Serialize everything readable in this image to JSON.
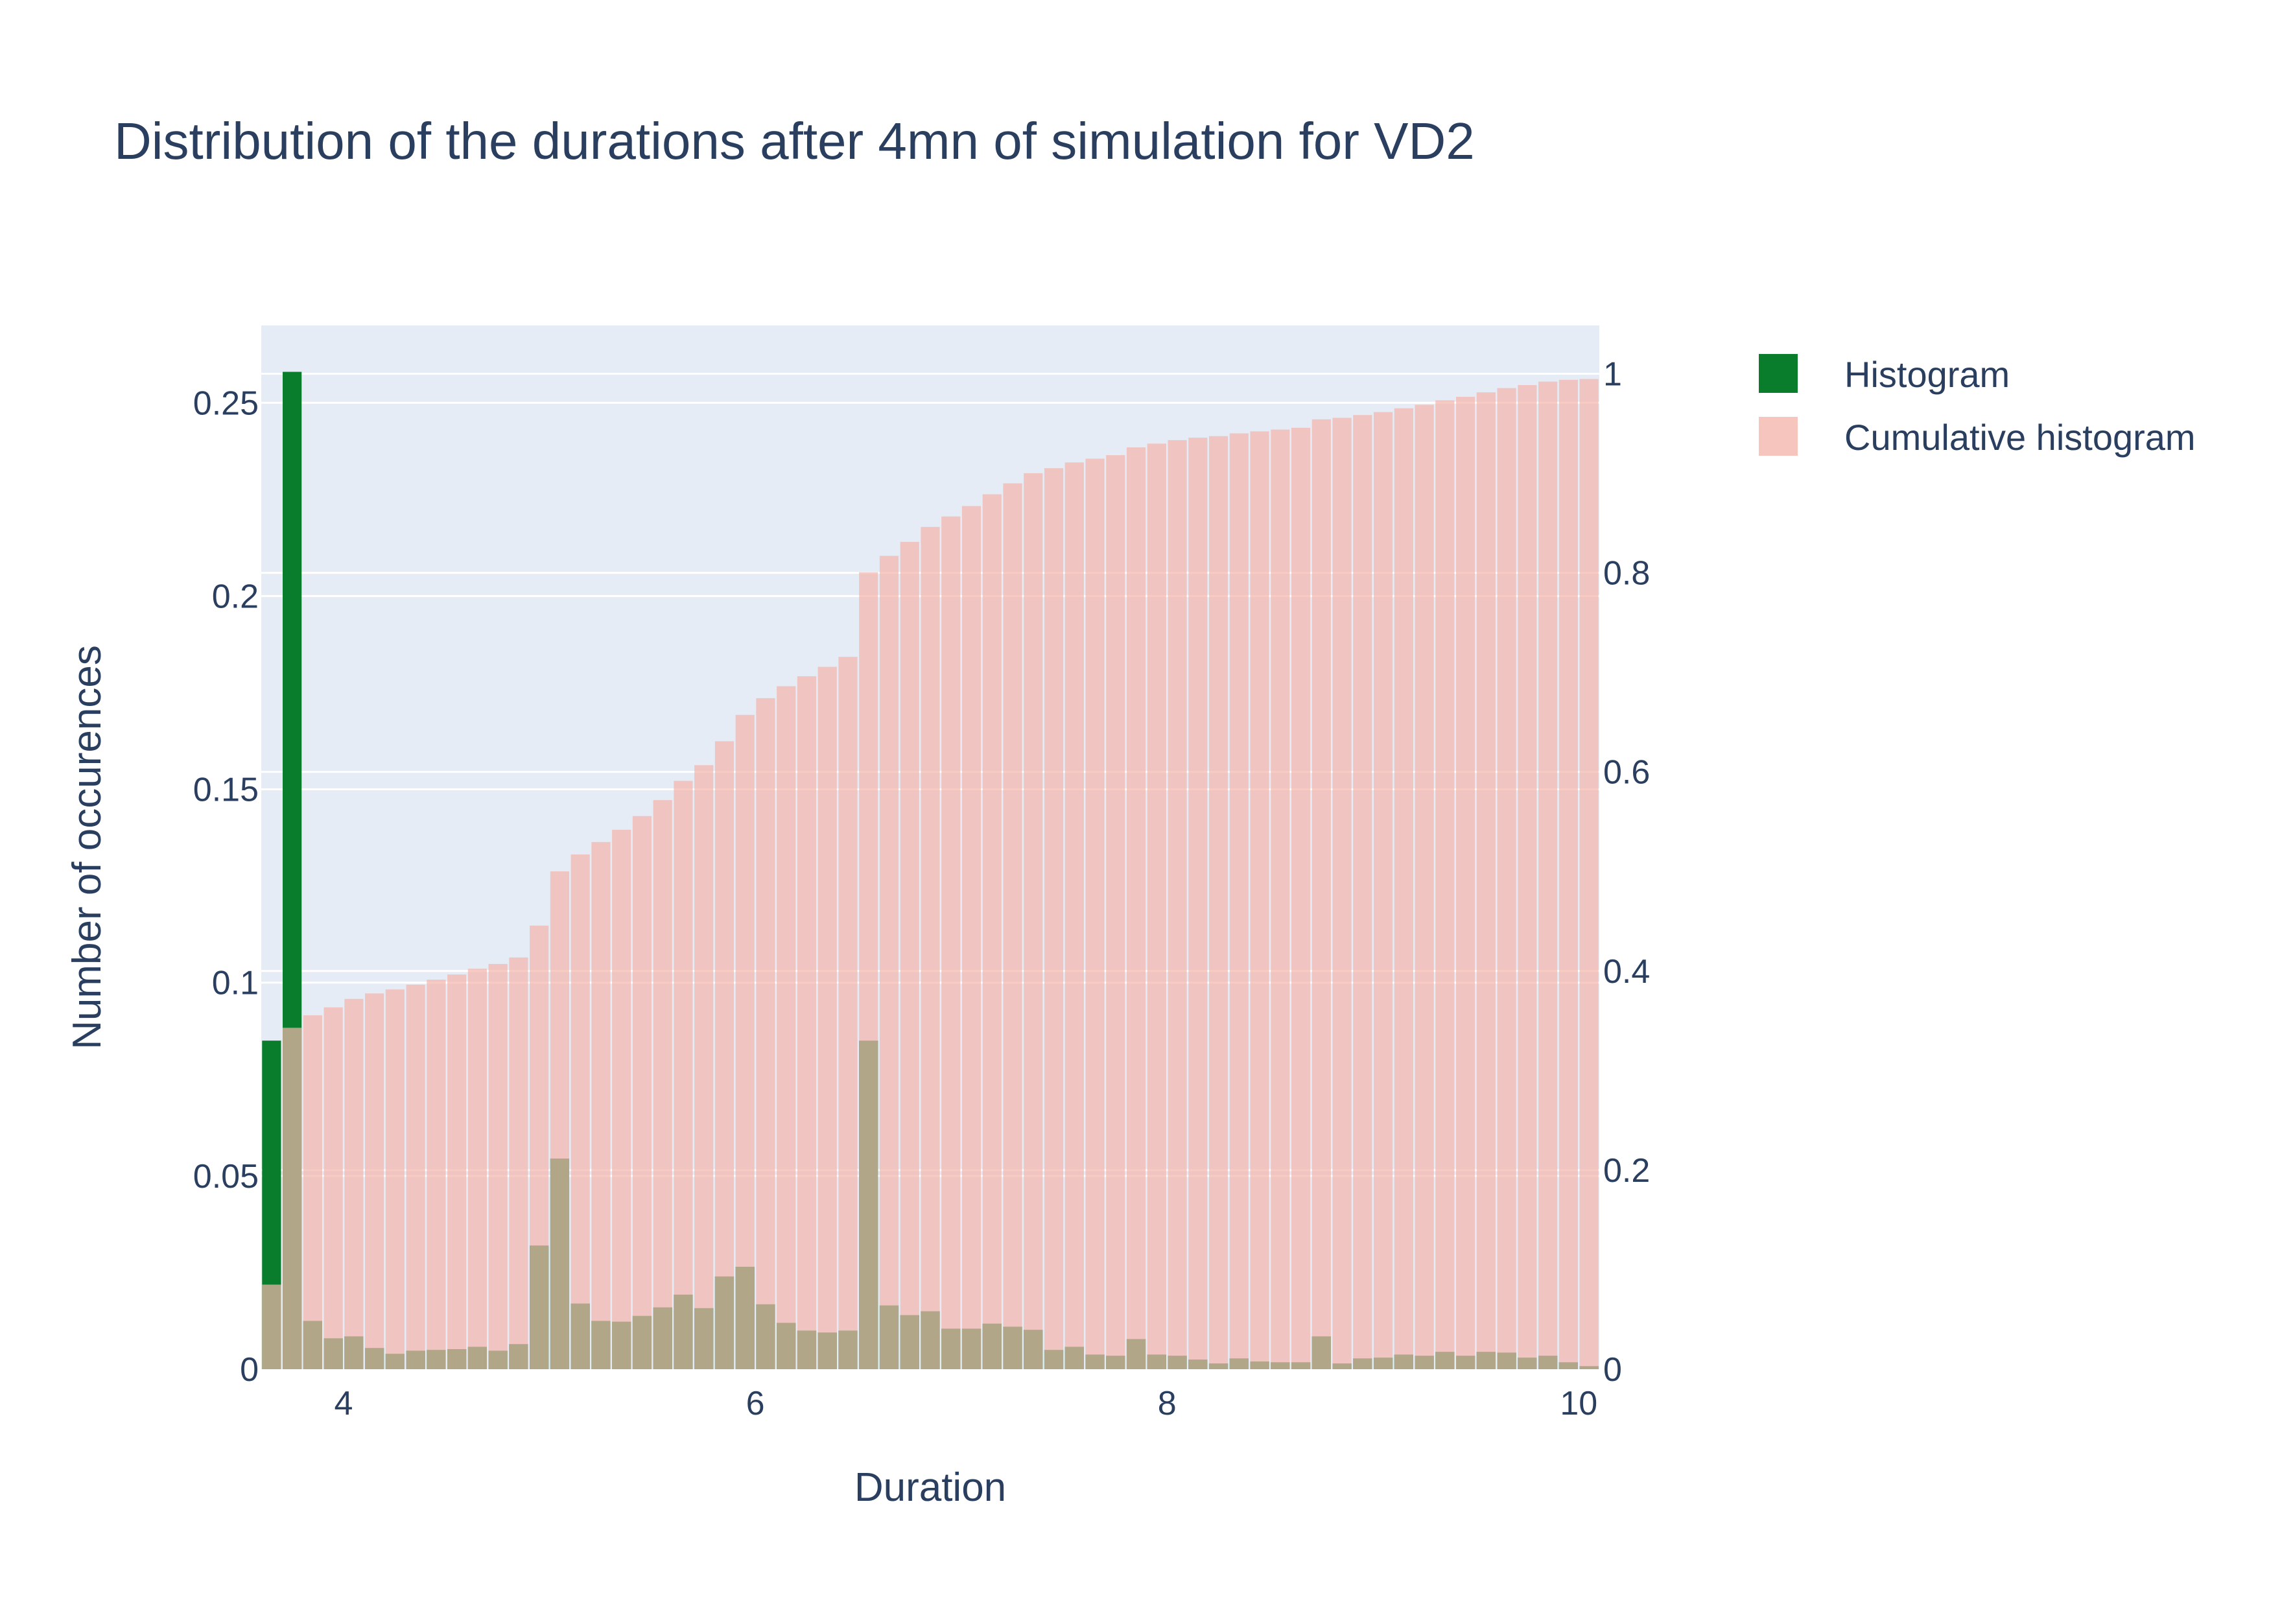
{
  "chart_data": {
    "type": "bar",
    "title": "Distribution of the durations after 4mn of simulation for VD2",
    "xlabel": "Duration",
    "ylabel": "Number of occurences",
    "y2label": "",
    "xlim": [
      3.6,
      10.1
    ],
    "ylim": [
      0,
      0.27
    ],
    "y2lim": [
      0,
      1.0485
    ],
    "x_ticks": [
      4,
      6,
      8,
      10
    ],
    "y_ticks": [
      0,
      0.05,
      0.1,
      0.15,
      0.2,
      0.25
    ],
    "y_tick_labels": [
      "0",
      "0.05",
      "0.1",
      "0.15",
      "0.2",
      "0.25"
    ],
    "y2_ticks": [
      0,
      0.2,
      0.4,
      0.6,
      0.8,
      1
    ],
    "y2_tick_labels": [
      "0",
      "0.2",
      "0.4",
      "0.6",
      "0.8",
      "1"
    ],
    "bin_start": 3.6,
    "bin_width": 0.1,
    "grid": true,
    "legend_position": "top-right",
    "series": [
      {
        "name": "Histogram",
        "axis": "left",
        "color": "#0a7d2c",
        "values": [
          0.085,
          0.258,
          0.0125,
          0.008,
          0.0085,
          0.0055,
          0.004,
          0.0048,
          0.005,
          0.0052,
          0.0058,
          0.0048,
          0.0065,
          0.032,
          0.0545,
          0.017,
          0.0125,
          0.0123,
          0.0138,
          0.016,
          0.0193,
          0.0158,
          0.024,
          0.0265,
          0.0168,
          0.012,
          0.01,
          0.0095,
          0.01,
          0.085,
          0.0165,
          0.014,
          0.015,
          0.0105,
          0.0105,
          0.0118,
          0.011,
          0.0102,
          0.005,
          0.0058,
          0.0038,
          0.0035,
          0.0078,
          0.0038,
          0.0035,
          0.0025,
          0.0015,
          0.0028,
          0.002,
          0.0018,
          0.0018,
          0.0085,
          0.0015,
          0.0028,
          0.003,
          0.0038,
          0.0035,
          0.0045,
          0.0035,
          0.0045,
          0.0043,
          0.003,
          0.0035,
          0.0018,
          0.0008
        ]
      },
      {
        "name": "Cumulative histogram",
        "axis": "right",
        "color": "#f4b6ac",
        "values": [
          0.085,
          0.343,
          0.3555,
          0.3635,
          0.372,
          0.3775,
          0.3815,
          0.3863,
          0.3913,
          0.3965,
          0.4023,
          0.4071,
          0.4136,
          0.4456,
          0.5001,
          0.5171,
          0.5296,
          0.5419,
          0.5557,
          0.5717,
          0.591,
          0.6068,
          0.6308,
          0.6573,
          0.6741,
          0.6861,
          0.6961,
          0.7056,
          0.7156,
          0.8006,
          0.8171,
          0.8311,
          0.8461,
          0.8566,
          0.8671,
          0.8789,
          0.8899,
          0.9001,
          0.9051,
          0.9109,
          0.9147,
          0.9182,
          0.926,
          0.9298,
          0.9333,
          0.9358,
          0.9373,
          0.9401,
          0.9421,
          0.9439,
          0.9457,
          0.9542,
          0.9557,
          0.9585,
          0.9615,
          0.9653,
          0.9688,
          0.9733,
          0.9768,
          0.9813,
          0.9856,
          0.9886,
          0.9921,
          0.9939,
          0.9947
        ]
      }
    ]
  }
}
